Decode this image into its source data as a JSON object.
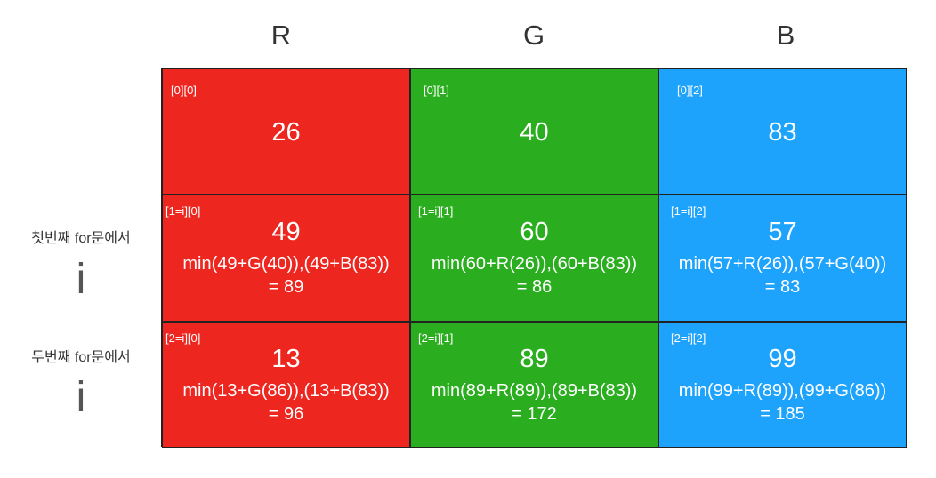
{
  "column_headers": [
    "R",
    "G",
    "B"
  ],
  "row_labels": [
    {
      "text": "첫번째 for문에서",
      "var": "i"
    },
    {
      "text": "두번째 for문에서",
      "var": "i"
    }
  ],
  "cells": [
    [
      {
        "index": "[0][0]",
        "value": "26",
        "formula_line1": "",
        "formula_line2": ""
      },
      {
        "index": "[0][1]",
        "value": "40",
        "formula_line1": "",
        "formula_line2": ""
      },
      {
        "index": "[0][2]",
        "value": "83",
        "formula_line1": "",
        "formula_line2": ""
      }
    ],
    [
      {
        "index": "[1=i][0]",
        "value": "49",
        "formula_line1": "min(49+G(40)),(49+B(83))",
        "formula_line2": "= 89"
      },
      {
        "index": "[1=i][1]",
        "value": "60",
        "formula_line1": "min(60+R(26)),(60+B(83))",
        "formula_line2": "= 86"
      },
      {
        "index": "[1=i][2]",
        "value": "57",
        "formula_line1": "min(57+R(26)),(57+G(40))",
        "formula_line2": "= 83"
      }
    ],
    [
      {
        "index": "[2=i][0]",
        "value": "13",
        "formula_line1": "min(13+G(86)),(13+B(83))",
        "formula_line2": "= 96"
      },
      {
        "index": "[2=i][1]",
        "value": "89",
        "formula_line1": "min(89+R(89)),(89+B(83))",
        "formula_line2": "= 172"
      },
      {
        "index": "[2=i][2]",
        "value": "99",
        "formula_line1": "min(99+R(89)),(99+G(86))",
        "formula_line2": "= 185"
      }
    ]
  ],
  "colors": {
    "red": "#ee2620",
    "green": "#2aae1f",
    "blue": "#1ea3fd",
    "border": "#222222"
  }
}
